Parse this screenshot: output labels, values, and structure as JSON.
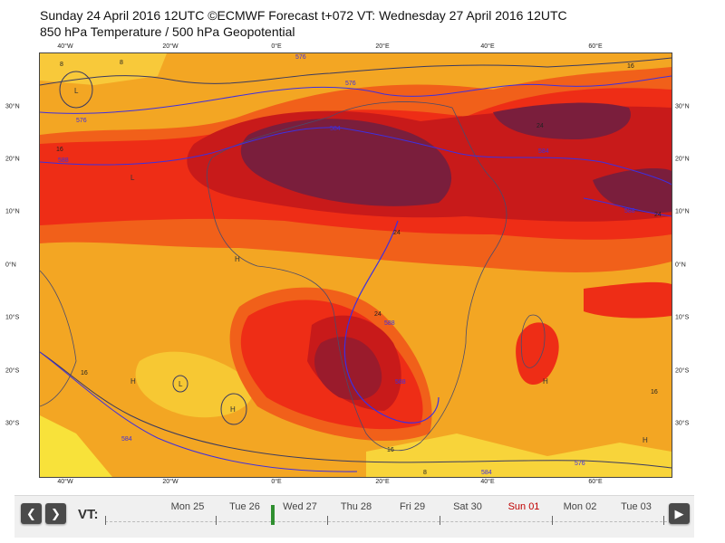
{
  "header": {
    "line1": "Sunday 24 April 2016 12UTC ©ECMWF Forecast t+072 VT: Wednesday 27 April 2016 12UTC",
    "line2": "850 hPa Temperature / 500 hPa Geopotential"
  },
  "map": {
    "lon_labels": [
      "40°W",
      "20°W",
      "0°E",
      "20°E",
      "40°E",
      "60°E"
    ],
    "lat_labels": [
      "30°N",
      "20°N",
      "10°N",
      "0°N",
      "10°S",
      "20°S",
      "30°S"
    ],
    "contour_labels": {
      "geopotential": [
        "576",
        "588",
        "584",
        "576",
        "588",
        "584",
        "588",
        "576",
        "584",
        "588",
        "584",
        "576"
      ],
      "temperature": [
        "16",
        "16",
        "24",
        "24",
        "24",
        "24",
        "16",
        "16",
        "16",
        "8",
        "8",
        "8"
      ]
    },
    "colors": {
      "dark_maroon": "#7a1e3c",
      "deep_red": "#c81a1a",
      "red": "#ee2d16",
      "orange_red": "#f1601a",
      "orange": "#f3a623",
      "yellow": "#f8e23a",
      "geopotential_contour": "#3e2fe0",
      "temperature_contour": "#3a3a60"
    }
  },
  "timebar": {
    "prev_icon": "chevron-left-icon",
    "next_icon": "chevron-right-icon",
    "play_icon": "play-icon",
    "vt_label": "VT:",
    "days": [
      "Mon 25",
      "Tue 26",
      "Wed 27",
      "Thu 28",
      "Fri 29",
      "Sat 30",
      "Sun 01",
      "Mon 02",
      "Tue 03"
    ],
    "current_day": "Wed 27",
    "highlight_color": "#c00000",
    "marker_color": "#2f8f2f"
  }
}
